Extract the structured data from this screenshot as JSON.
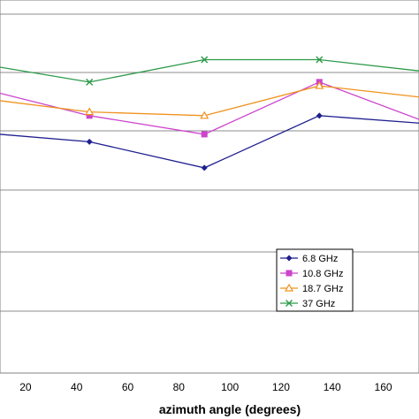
{
  "chart_data": {
    "type": "line",
    "xlabel": "azimuth angle (degrees)",
    "ylabel": "",
    "title": "",
    "x_tick_labels": [
      "20",
      "40",
      "60",
      "80",
      "100",
      "120",
      "140",
      "160"
    ],
    "xlim": [
      10,
      174
    ],
    "ylim": [
      0,
      1
    ],
    "grid": true,
    "legend_position": "lower-right",
    "series": [
      {
        "name": "6.8 GHz",
        "marker": "diamond",
        "color": "#1f1f8f",
        "x": [
          10,
          45,
          90,
          135,
          174
        ],
        "y": [
          0.64,
          0.62,
          0.55,
          0.69,
          0.67
        ]
      },
      {
        "name": "10.8 GHz",
        "marker": "square",
        "color": "#cc44cc",
        "x": [
          10,
          45,
          90,
          135,
          174
        ],
        "y": [
          0.75,
          0.69,
          0.64,
          0.78,
          0.68
        ]
      },
      {
        "name": "18.7 GHz",
        "marker": "triangle",
        "color": "#f0921e",
        "x": [
          10,
          45,
          90,
          135,
          174
        ],
        "y": [
          0.73,
          0.7,
          0.69,
          0.77,
          0.74
        ]
      },
      {
        "name": "37 GHz",
        "marker": "x",
        "color": "#2e9a4a",
        "x": [
          10,
          45,
          90,
          135,
          174
        ],
        "y": [
          0.82,
          0.78,
          0.84,
          0.84,
          0.81
        ]
      }
    ]
  }
}
